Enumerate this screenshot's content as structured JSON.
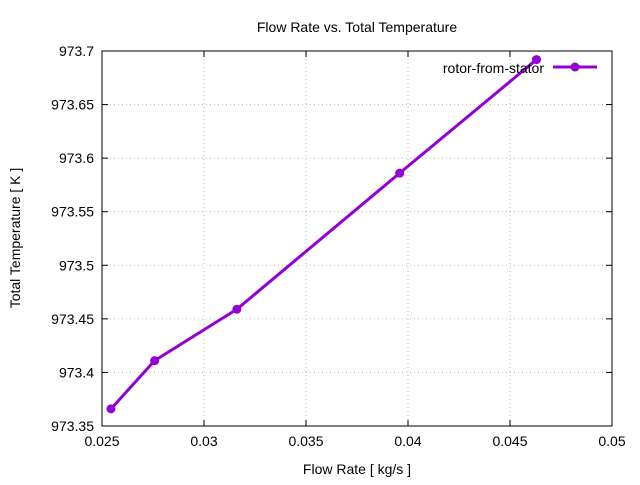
{
  "chart_data": {
    "type": "line",
    "title": "Flow Rate vs. Total Temperature",
    "xlabel": "Flow Rate [ kg/s ]",
    "ylabel": "Total Temperature [ K ]",
    "xlim": [
      0.025,
      0.05
    ],
    "ylim": [
      973.35,
      973.7
    ],
    "xticks": [
      "0.025",
      "0.03",
      "0.035",
      "0.04",
      "0.045",
      "0.05"
    ],
    "xtick_values": [
      0.025,
      0.03,
      0.035,
      0.04,
      0.045,
      0.05
    ],
    "yticks": [
      "973.35",
      "973.4",
      "973.45",
      "973.5",
      "973.55",
      "973.6",
      "973.65",
      "973.7"
    ],
    "ytick_values": [
      973.35,
      973.4,
      973.45,
      973.5,
      973.55,
      973.6,
      973.65,
      973.7
    ],
    "grid": true,
    "legend_position": "top-right",
    "series": [
      {
        "name": "rotor-from-stator",
        "color": "#9400D3",
        "x": [
          0.02544,
          0.02758,
          0.03161,
          0.03959,
          0.0463
        ],
        "y": [
          973.366,
          973.411,
          973.459,
          973.586,
          973.692
        ]
      }
    ]
  }
}
